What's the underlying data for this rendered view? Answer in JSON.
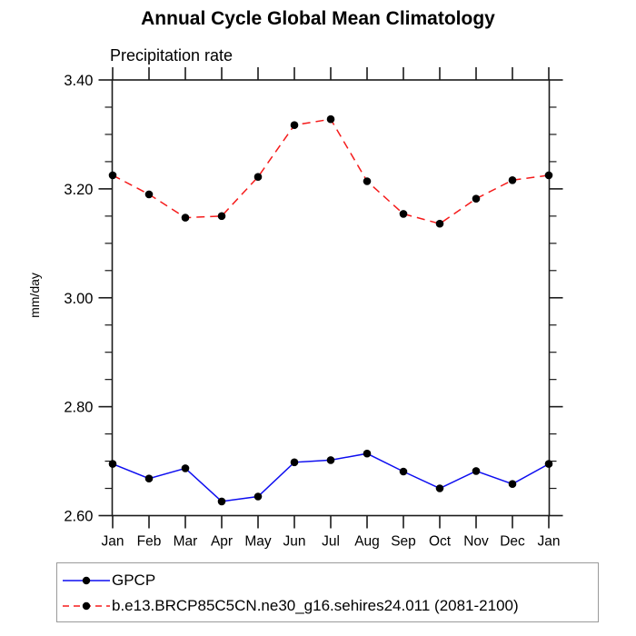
{
  "chart_data": {
    "type": "line",
    "title": "Annual Cycle Global Mean Climatology",
    "subtitle": "Precipitation rate",
    "ylabel": "mm/day",
    "xlabel": "",
    "categories": [
      "Jan",
      "Feb",
      "Mar",
      "Apr",
      "May",
      "Jun",
      "Jul",
      "Aug",
      "Sep",
      "Oct",
      "Nov",
      "Dec",
      "Jan"
    ],
    "ylim": [
      2.6,
      3.4
    ],
    "ytick_step": 0.2,
    "ytick_minor_step": 0.05,
    "ytick_labels": [
      "2.60",
      "2.80",
      "3.00",
      "3.20",
      "3.40"
    ],
    "grid": "off",
    "legend_position": "bottom-left",
    "axis_color": "#1a1a1a",
    "marker_color": "#000000",
    "series": [
      {
        "name": "GPCP",
        "color": "#0d0df0",
        "line_style": "solid",
        "marker": "filled-circle",
        "values": [
          2.695,
          2.668,
          2.687,
          2.626,
          2.635,
          2.698,
          2.702,
          2.714,
          2.681,
          2.65,
          2.682,
          2.658,
          2.695
        ]
      },
      {
        "name": "b.e13.BRCP85C5CN.ne30_g16.sehires24.011 (2081-2100)",
        "color": "#f51b1b",
        "line_style": "dashed",
        "marker": "filled-circle",
        "values": [
          3.225,
          3.19,
          3.147,
          3.15,
          3.222,
          3.317,
          3.328,
          3.214,
          3.154,
          3.136,
          3.182,
          3.216,
          3.225
        ]
      }
    ]
  }
}
